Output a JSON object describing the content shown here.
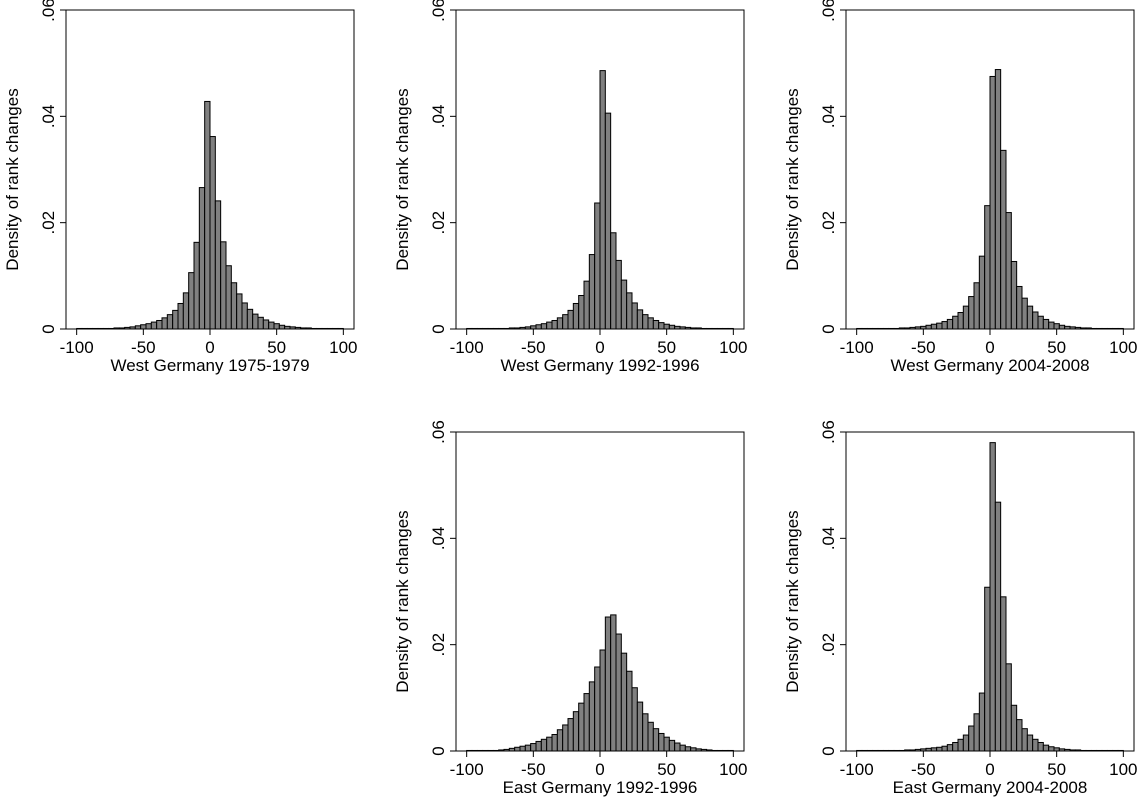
{
  "figure": {
    "bin_width": 4,
    "bin_start": -100,
    "bar_color": "#808080",
    "bar_edge_color": "#000000"
  },
  "chart_data": [
    {
      "type": "bar",
      "xlabel": "West Germany 1975-1979",
      "ylabel": "Density of rank changes",
      "xlim": [
        -100,
        100
      ],
      "ylim": [
        0,
        0.06
      ],
      "xticks": [
        "-100",
        "-50",
        "0",
        "50",
        "100"
      ],
      "yticks": [
        "0",
        ".02",
        ".04",
        ".06"
      ],
      "values": [
        0.0001,
        0.0001,
        0.0001,
        0.0001,
        0.0001,
        0.0001,
        0.0001,
        0.0002,
        0.0002,
        0.0003,
        0.0004,
        0.0006,
        0.0008,
        0.001,
        0.0013,
        0.0016,
        0.0021,
        0.0027,
        0.0035,
        0.0048,
        0.0068,
        0.0106,
        0.0163,
        0.0266,
        0.0428,
        0.0362,
        0.0241,
        0.0164,
        0.0119,
        0.0087,
        0.0066,
        0.0049,
        0.0037,
        0.0028,
        0.0022,
        0.0017,
        0.0013,
        0.001,
        0.0007,
        0.0005,
        0.0004,
        0.0003,
        0.0002,
        0.0002,
        0.0001,
        0.0001,
        0.0001,
        0.0001,
        0.0001,
        0.0001
      ]
    },
    {
      "type": "bar",
      "xlabel": "West Germany 1992-1996",
      "ylabel": "Density of rank changes",
      "xlim": [
        -100,
        100
      ],
      "ylim": [
        0,
        0.06
      ],
      "xticks": [
        "-100",
        "-50",
        "0",
        "50",
        "100"
      ],
      "yticks": [
        "0",
        ".02",
        ".04",
        ".06"
      ],
      "values": [
        0.0001,
        0.0001,
        0.0001,
        0.0001,
        0.0001,
        0.0001,
        0.0001,
        0.0001,
        0.0002,
        0.0002,
        0.0003,
        0.0004,
        0.0006,
        0.0008,
        0.001,
        0.0013,
        0.0016,
        0.0021,
        0.0027,
        0.0035,
        0.0048,
        0.0063,
        0.009,
        0.014,
        0.0237,
        0.0486,
        0.0406,
        0.0181,
        0.0129,
        0.0092,
        0.0068,
        0.0049,
        0.0036,
        0.0027,
        0.0021,
        0.0016,
        0.0012,
        0.0009,
        0.0007,
        0.0005,
        0.0004,
        0.0003,
        0.0002,
        0.0002,
        0.0001,
        0.0001,
        0.0001,
        0.0001,
        0.0001,
        0.0001
      ]
    },
    {
      "type": "bar",
      "xlabel": "West Germany 2004-2008",
      "ylabel": "Density of rank changes",
      "xlim": [
        -100,
        100
      ],
      "ylim": [
        0,
        0.06
      ],
      "xticks": [
        "-100",
        "-50",
        "0",
        "50",
        "100"
      ],
      "yticks": [
        "0",
        ".02",
        ".04",
        ".06"
      ],
      "values": [
        0.0001,
        0.0001,
        0.0001,
        0.0001,
        0.0001,
        0.0001,
        0.0001,
        0.0001,
        0.0002,
        0.0002,
        0.0003,
        0.0004,
        0.0005,
        0.0007,
        0.0009,
        0.0011,
        0.0014,
        0.0018,
        0.0024,
        0.0031,
        0.0043,
        0.0061,
        0.0087,
        0.0137,
        0.0232,
        0.0475,
        0.0488,
        0.0336,
        0.0219,
        0.0127,
        0.008,
        0.0058,
        0.0043,
        0.0032,
        0.0024,
        0.0018,
        0.0013,
        0.001,
        0.0007,
        0.0005,
        0.0004,
        0.0003,
        0.0002,
        0.0002,
        0.0001,
        0.0001,
        0.0001,
        0.0001,
        0.0001,
        0.0001
      ]
    },
    {
      "type": "bar",
      "xlabel": "East Germany 1992-1996",
      "ylabel": "Density of rank changes",
      "xlim": [
        -100,
        100
      ],
      "ylim": [
        0,
        0.06
      ],
      "xticks": [
        "-100",
        "-50",
        "0",
        "50",
        "100"
      ],
      "yticks": [
        "0",
        ".02",
        ".04",
        ".06"
      ],
      "values": [
        0.0001,
        0.0001,
        0.0001,
        0.0001,
        0.0001,
        0.0001,
        0.0002,
        0.0003,
        0.0005,
        0.0007,
        0.0009,
        0.0011,
        0.0014,
        0.0018,
        0.0022,
        0.0026,
        0.0031,
        0.004,
        0.0049,
        0.0061,
        0.0074,
        0.009,
        0.0108,
        0.013,
        0.0158,
        0.019,
        0.0252,
        0.0256,
        0.022,
        0.0184,
        0.015,
        0.0119,
        0.0092,
        0.007,
        0.0054,
        0.0042,
        0.0033,
        0.0026,
        0.002,
        0.0015,
        0.0011,
        0.0008,
        0.0006,
        0.0004,
        0.0003,
        0.0002,
        0.0001,
        0.0001,
        0.0001,
        0.0001
      ]
    },
    {
      "type": "bar",
      "xlabel": "East Germany 2004-2008",
      "ylabel": "Density of rank changes",
      "xlim": [
        -100,
        100
      ],
      "ylim": [
        0,
        0.06
      ],
      "xticks": [
        "-100",
        "-50",
        "0",
        "50",
        "100"
      ],
      "yticks": [
        "0",
        ".02",
        ".04",
        ".06"
      ],
      "values": [
        0.0001,
        0.0001,
        0.0001,
        0.0001,
        0.0001,
        0.0001,
        0.0001,
        0.0001,
        0.0001,
        0.0002,
        0.0002,
        0.0003,
        0.0004,
        0.0005,
        0.0006,
        0.0007,
        0.0009,
        0.0012,
        0.0016,
        0.0022,
        0.003,
        0.0047,
        0.007,
        0.0109,
        0.0308,
        0.058,
        0.0468,
        0.029,
        0.0164,
        0.0086,
        0.0059,
        0.0042,
        0.003,
        0.0022,
        0.0016,
        0.0011,
        0.0008,
        0.0006,
        0.0004,
        0.0003,
        0.0002,
        0.0002,
        0.0001,
        0.0001,
        0.0001,
        0.0001,
        0.0001,
        0.0001,
        0.0001,
        0.0001
      ]
    }
  ]
}
